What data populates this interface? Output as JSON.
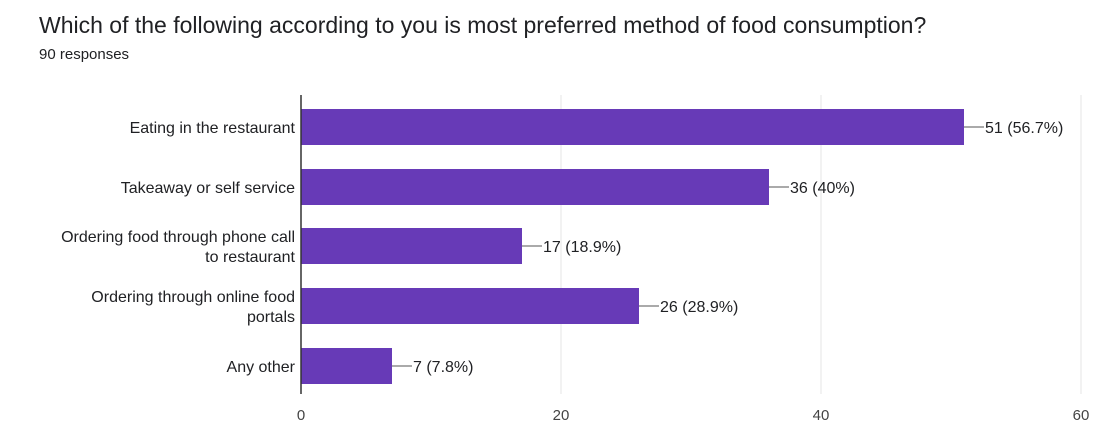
{
  "header": {
    "question": "Which of the following according to you is most preferred method of food consumption?",
    "responses": "90 responses"
  },
  "chart_data": {
    "type": "bar",
    "orientation": "horizontal",
    "categories": [
      [
        "Eating in the restaurant"
      ],
      [
        "Takeaway or self service"
      ],
      [
        "Ordering food through phone call",
        "to restaurant"
      ],
      [
        "Ordering through online food",
        "portals"
      ],
      [
        "Any other"
      ]
    ],
    "values": [
      51,
      36,
      17,
      26,
      7
    ],
    "value_labels": [
      "51 (56.7%)",
      "36 (40%)",
      "17 (18.9%)",
      "26 (28.9%)",
      "7 (7.8%)"
    ],
    "xlim": [
      0,
      60
    ],
    "x_ticks": [
      0,
      20,
      40,
      60
    ],
    "grid": true,
    "bar_color": "#673AB7",
    "grid_color": "#e6e6e6"
  }
}
